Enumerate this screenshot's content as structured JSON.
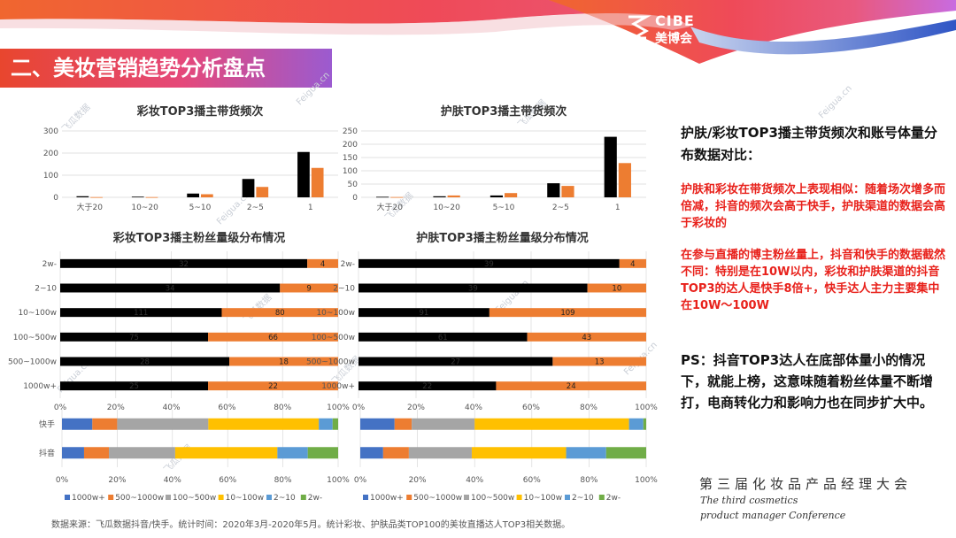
{
  "header": {
    "section_title": "二、美妆营销趋势分析盘点",
    "logo_en": "CIBE",
    "logo_cn": "美博会"
  },
  "watermark": {
    "cn": "飞瓜数据",
    "en": "Feigua.cn"
  },
  "commentary": {
    "heading": "护肤/彩妆TOP3播主带货频次和账号体量分布数据对比：",
    "red_1": "护肤和彩妆在带货频次上表现相似：随着场次增多而倍减，抖音的频次会高于快手，护肤渠道的数据会高于彩妆的",
    "red_2": "在参与直播的博主粉丝量上，抖音和快手的数据截然不同：特别是在10W以内，彩妆和护肤渠道的抖音TOP3的达人是快手8倍+，快手达人主力主要集中在10W～100W",
    "ps": "PS：抖音TOP3达人在底部体量小的情况下，就能上榜，这意味随着粉丝体量不断增打，电商转化力和影响力也在同步扩大中。"
  },
  "conference": {
    "cn": "第三届化妆品产品经理大会",
    "en1": "The third cosmetics",
    "en2": "product manager Conference"
  },
  "source": "数据来源：飞瓜数据抖音/快手。统计时间：2020年3月-2020年5月。统计彩妆、护肤品类TOP100的美妆直播达人TOP3相关数据。",
  "colors": {
    "kuaishou": "#000000",
    "douyin": "#ed7d31"
  },
  "chart_data": [
    {
      "id": "makeup_freq",
      "type": "bar",
      "title": "彩妆TOP3播主带货频次",
      "categories": [
        "大于20",
        "10~20",
        "5~10",
        "2~5",
        "1"
      ],
      "series": [
        {
          "values": [
            5,
            3,
            17,
            83,
            205
          ]
        },
        {
          "values": [
            1,
            1,
            14,
            47,
            133
          ]
        }
      ],
      "ylim": [
        0,
        300
      ],
      "yticks": [
        0,
        100,
        200,
        300
      ],
      "grid": true
    },
    {
      "id": "skincare_freq",
      "type": "bar",
      "title": "护肤TOP3播主带货频次",
      "categories": [
        "大于20",
        "10~20",
        "5~10",
        "2~5",
        "1"
      ],
      "series": [
        {
          "values": [
            2,
            4,
            7,
            53,
            228
          ]
        },
        {
          "values": [
            1,
            7,
            16,
            43,
            129
          ]
        }
      ],
      "ylim": [
        0,
        250
      ],
      "yticks": [
        0,
        50,
        100,
        150,
        200,
        250
      ],
      "grid": true
    },
    {
      "id": "makeup_fans",
      "type": "bar",
      "orientation": "horizontal",
      "stacked_percent": true,
      "title": "彩妆TOP3播主粉丝量级分布情况",
      "categories": [
        "2w-",
        "2~10",
        "10~100w",
        "100~500w",
        "500~1000w",
        "1000w+"
      ],
      "series": [
        {
          "values": [
            32,
            34,
            111,
            75,
            28,
            25
          ]
        },
        {
          "values": [
            4,
            9,
            80,
            66,
            18,
            22
          ]
        }
      ],
      "xticks": [
        "0%",
        "20%",
        "40%",
        "60%",
        "80%",
        "100%"
      ]
    },
    {
      "id": "skincare_fans",
      "type": "bar",
      "orientation": "horizontal",
      "stacked_percent": true,
      "title": "护肤TOP3播主粉丝量级分布情况",
      "categories": [
        "2w-",
        "2~10",
        "10~100w",
        "100~500w",
        "500~1000w",
        "1000w+"
      ],
      "series": [
        {
          "values": [
            39,
            39,
            91,
            61,
            27,
            22
          ]
        },
        {
          "values": [
            4,
            10,
            109,
            43,
            13,
            24
          ]
        }
      ],
      "xticks": [
        "0%",
        "20%",
        "40%",
        "60%",
        "80%",
        "100%"
      ]
    },
    {
      "id": "makeup_platform_dist",
      "type": "bar",
      "orientation": "horizontal",
      "stacked_percent": true,
      "categories": [
        "快手",
        "抖音"
      ],
      "series": [
        {
          "name": "1000w+",
          "color": "#4472c4",
          "values": [
            11,
            8
          ]
        },
        {
          "name": "500~1000w",
          "color": "#ed7d31",
          "values": [
            9,
            9
          ]
        },
        {
          "name": "100~500w",
          "color": "#a5a5a5",
          "values": [
            33,
            24
          ]
        },
        {
          "name": "10~100w",
          "color": "#ffc000",
          "values": [
            40,
            37
          ]
        },
        {
          "name": "2~10",
          "color": "#5b9bd5",
          "values": [
            5,
            11
          ]
        },
        {
          "name": "2w-",
          "color": "#70ad47",
          "values": [
            2,
            11
          ]
        }
      ],
      "xticks": [
        "0%",
        "20%",
        "40%",
        "60%",
        "80%",
        "100%"
      ],
      "legend": "bottom"
    },
    {
      "id": "skincare_platform_dist",
      "type": "bar",
      "orientation": "horizontal",
      "stacked_percent": true,
      "categories": [
        "快手",
        "抖音"
      ],
      "series": [
        {
          "name": "1000w+",
          "color": "#4472c4",
          "values": [
            12,
            8
          ]
        },
        {
          "name": "500~1000w",
          "color": "#ed7d31",
          "values": [
            6,
            9
          ]
        },
        {
          "name": "100~500w",
          "color": "#a5a5a5",
          "values": [
            22,
            22
          ]
        },
        {
          "name": "10~100w",
          "color": "#ffc000",
          "values": [
            54,
            33
          ]
        },
        {
          "name": "2~10",
          "color": "#5b9bd5",
          "values": [
            5,
            14
          ]
        },
        {
          "name": "2w-",
          "color": "#70ad47",
          "values": [
            1,
            14
          ]
        }
      ],
      "xticks": [
        "0%",
        "20%",
        "40%",
        "60%",
        "80%",
        "100%"
      ],
      "legend": "bottom"
    }
  ]
}
